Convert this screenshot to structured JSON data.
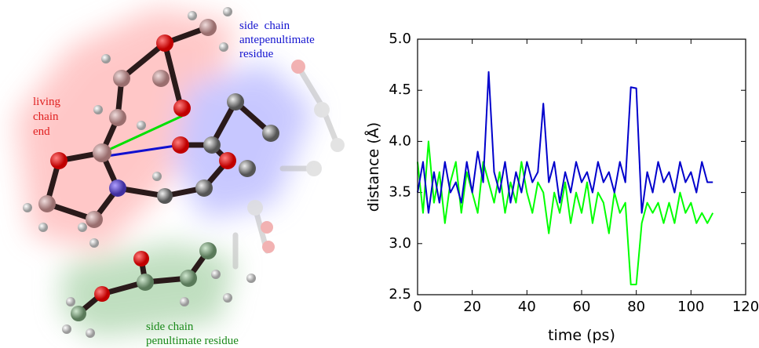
{
  "chart_data": {
    "type": "line",
    "x": [
      0,
      2,
      4,
      6,
      8,
      10,
      12,
      14,
      16,
      18,
      20,
      22,
      24,
      26,
      28,
      30,
      32,
      34,
      36,
      38,
      40,
      42,
      44,
      46,
      48,
      50,
      52,
      54,
      56,
      58,
      60,
      62,
      64,
      66,
      68,
      70,
      72,
      74,
      76,
      78,
      80,
      82,
      84,
      86,
      88,
      90,
      92,
      94,
      96,
      98,
      100,
      102,
      104,
      106,
      108
    ],
    "series": [
      {
        "color": "#00ff00",
        "values": [
          3.8,
          3.3,
          4.0,
          3.4,
          3.7,
          3.2,
          3.6,
          3.8,
          3.3,
          3.7,
          3.5,
          3.3,
          3.8,
          3.6,
          3.4,
          3.7,
          3.3,
          3.6,
          3.4,
          3.8,
          3.5,
          3.3,
          3.6,
          3.5,
          3.1,
          3.5,
          3.3,
          3.6,
          3.2,
          3.5,
          3.3,
          3.6,
          3.2,
          3.5,
          3.4,
          3.1,
          3.5,
          3.3,
          3.4,
          2.6,
          2.6,
          3.2,
          3.4,
          3.3,
          3.4,
          3.2,
          3.4,
          3.2,
          3.5,
          3.3,
          3.4,
          3.2,
          3.3,
          3.2,
          3.3
        ]
      },
      {
        "color": "#0000cc",
        "values": [
          3.5,
          3.8,
          3.3,
          3.7,
          3.4,
          3.8,
          3.5,
          3.6,
          3.4,
          3.8,
          3.5,
          3.9,
          3.6,
          4.68,
          3.7,
          3.5,
          3.8,
          3.4,
          3.7,
          3.5,
          3.8,
          3.6,
          3.7,
          4.37,
          3.6,
          3.8,
          3.4,
          3.7,
          3.5,
          3.8,
          3.6,
          3.7,
          3.5,
          3.8,
          3.6,
          3.7,
          3.5,
          3.8,
          3.6,
          4.53,
          4.52,
          3.3,
          3.7,
          3.5,
          3.8,
          3.6,
          3.7,
          3.5,
          3.8,
          3.6,
          3.7,
          3.5,
          3.8,
          3.6,
          3.6
        ]
      }
    ],
    "xlim": [
      0,
      120
    ],
    "xticks": [
      0,
      20,
      40,
      60,
      80,
      100,
      120
    ],
    "ylim": [
      2.5,
      5.0
    ],
    "yticks": [
      2.5,
      {
        "value": 3,
        "label": "3.0"
      },
      3.5,
      {
        "value": 4,
        "label": "4.0"
      },
      4.5,
      {
        "value": 5,
        "label": "5.0"
      }
    ],
    "xlabel": "time (ps)",
    "ylabel": "distance (Å)"
  },
  "molecule": {
    "labels": [
      {
        "lines": [
          "living",
          "chain",
          "end"
        ]
      },
      {
        "lines": [
          "side  chain",
          "antepenultimate",
          "residue"
        ]
      },
      {
        "lines": [
          "side chain",
          "penultimate residue"
        ]
      }
    ]
  }
}
